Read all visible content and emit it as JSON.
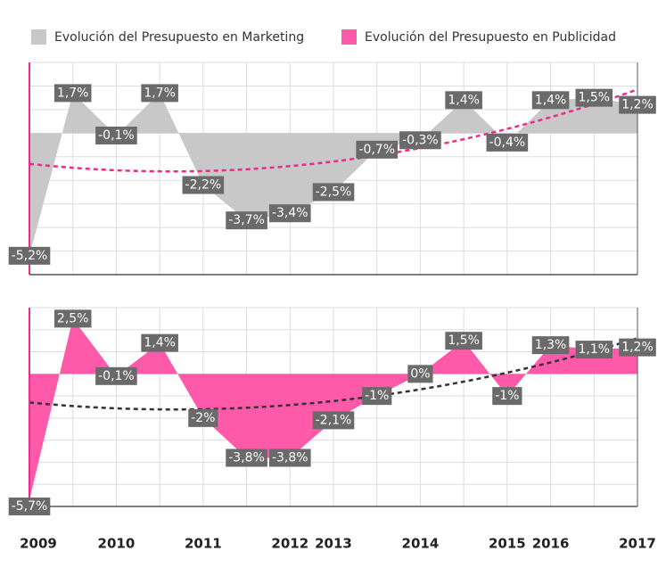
{
  "chart_data": [
    {
      "type": "area",
      "categories": [
        "2009",
        null,
        "2010",
        null,
        "2011",
        null,
        "2012",
        "2013",
        null,
        "2014",
        null,
        "2015",
        "2016",
        null,
        "2017"
      ],
      "series": [
        {
          "name": "Evolución del Presupuesto en Marketing",
          "color": "#c8c8c8",
          "values": [
            -5.2,
            1.7,
            -0.1,
            1.7,
            -2.2,
            -3.7,
            -3.4,
            -2.5,
            -0.7,
            -0.3,
            1.4,
            -0.4,
            1.4,
            1.5,
            1.2
          ],
          "value_labels": [
            "-5,2%",
            "1,7%",
            "-0,1%",
            "1,7%",
            "-2,2%",
            "-3,7%",
            "-3,4%",
            "-2,5%",
            "-0,7%",
            "-0,3%",
            "1,4%",
            "-0,4%",
            "1,4%",
            "1,5%",
            "1,2%"
          ]
        }
      ],
      "ylim": [
        -6,
        3
      ],
      "yticks": [
        -6,
        -5,
        -4,
        -3,
        -2,
        -1,
        0,
        1,
        2,
        3
      ],
      "grid": true,
      "trendline_color": "#ee2a8a"
    },
    {
      "type": "area",
      "categories": [
        "2009",
        null,
        "2010",
        null,
        "2011",
        null,
        "2012",
        "2013",
        null,
        "2014",
        null,
        "2015",
        "2016",
        null,
        "2017"
      ],
      "series": [
        {
          "name": "Evolución del Presupuesto en Publicidad",
          "color": "#ff5aaa",
          "values": [
            -5.7,
            2.5,
            -0.1,
            1.4,
            -2,
            -3.8,
            -3.8,
            -2.1,
            -1,
            0,
            1.5,
            -1,
            1.3,
            1.1,
            1.2
          ],
          "value_labels": [
            "-5,7%",
            "2,5%",
            "-0,1%",
            "1,4%",
            "-2%",
            "-3,8%",
            "-3,8%",
            "-2,1%",
            "-1%",
            "0%",
            "1,5%",
            "-1%",
            "1,3%",
            "1,1%",
            "1,2%"
          ]
        }
      ],
      "ylim": [
        -6,
        3
      ],
      "yticks": [
        -6,
        -5,
        -4,
        -3,
        -2,
        -1,
        0,
        1,
        2,
        3
      ],
      "grid": true,
      "trendline_color": "#333333"
    }
  ]
}
